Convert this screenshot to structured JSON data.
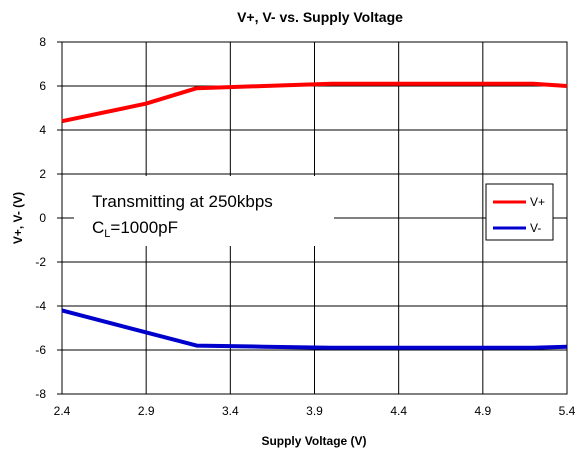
{
  "chart_data": {
    "type": "line",
    "title": "V+, V- vs. Supply Voltage",
    "xlabel": "Supply Voltage (V)",
    "ylabel": "V+, V- (V)",
    "xlim": [
      2.4,
      5.4
    ],
    "ylim": [
      -8,
      8
    ],
    "xticks": [
      "2.4",
      "2.9",
      "3.4",
      "3.9",
      "4.4",
      "4.9",
      "5.4"
    ],
    "yticks": [
      "8",
      "6",
      "4",
      "2",
      "0",
      "-2",
      "-4",
      "-6",
      "-8"
    ],
    "grid": "vertical-and-horizontal-partial",
    "legend_position": "right",
    "annotation": {
      "line1": "Transmitting at 250kbps",
      "line2_prefix": "C",
      "line2_sub": "L",
      "line2_suffix": "=1000pF"
    },
    "series": [
      {
        "name": "V+",
        "color": "#ff0000",
        "x": [
          2.4,
          2.9,
          3.2,
          3.6,
          4.0,
          4.4,
          4.9,
          5.2,
          5.4
        ],
        "y": [
          4.4,
          5.2,
          5.9,
          6.0,
          6.1,
          6.1,
          6.1,
          6.1,
          6.0
        ]
      },
      {
        "name": "V-",
        "color": "#0000cc",
        "x": [
          2.4,
          2.9,
          3.2,
          3.6,
          4.0,
          4.4,
          4.9,
          5.2,
          5.4
        ],
        "y": [
          -4.2,
          -5.2,
          -5.8,
          -5.85,
          -5.9,
          -5.9,
          -5.9,
          -5.9,
          -5.85
        ]
      }
    ]
  }
}
